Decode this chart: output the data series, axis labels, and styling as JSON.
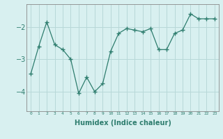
{
  "x": [
    0,
    1,
    2,
    3,
    4,
    5,
    6,
    7,
    8,
    9,
    10,
    11,
    12,
    13,
    14,
    15,
    16,
    17,
    18,
    19,
    20,
    21,
    22,
    23
  ],
  "y": [
    -3.45,
    -2.6,
    -1.85,
    -2.55,
    -2.7,
    -3.0,
    -4.05,
    -3.55,
    -4.0,
    -3.75,
    -2.75,
    -2.2,
    -2.05,
    -2.1,
    -2.15,
    -2.05,
    -2.7,
    -2.7,
    -2.2,
    -2.1,
    -1.6,
    -1.75,
    -1.75,
    -1.75
  ],
  "line_color": "#2e7d6e",
  "marker": "+",
  "marker_size": 4,
  "marker_edge_width": 1.0,
  "line_width": 0.9,
  "bg_color": "#d8f0f0",
  "grid_color": "#b8d8d8",
  "xlabel": "Humidex (Indice chaleur)",
  "xlim": [
    -0.5,
    23.5
  ],
  "ylim": [
    -4.6,
    -1.3
  ],
  "yticks": [
    -4,
    -3,
    -2
  ],
  "ylabel_fontsize": 7,
  "xlabel_fontsize": 7,
  "xtick_fontsize": 4.5,
  "ytick_fontsize": 7,
  "xtick_labels": [
    "0",
    "1",
    "2",
    "3",
    "4",
    "5",
    "6",
    "7",
    "8",
    "9",
    "10",
    "11",
    "12",
    "13",
    "14",
    "15",
    "16",
    "17",
    "18",
    "19",
    "20",
    "21",
    "22",
    "23"
  ],
  "spine_color": "#888888",
  "tick_color": "#2e7d6e"
}
